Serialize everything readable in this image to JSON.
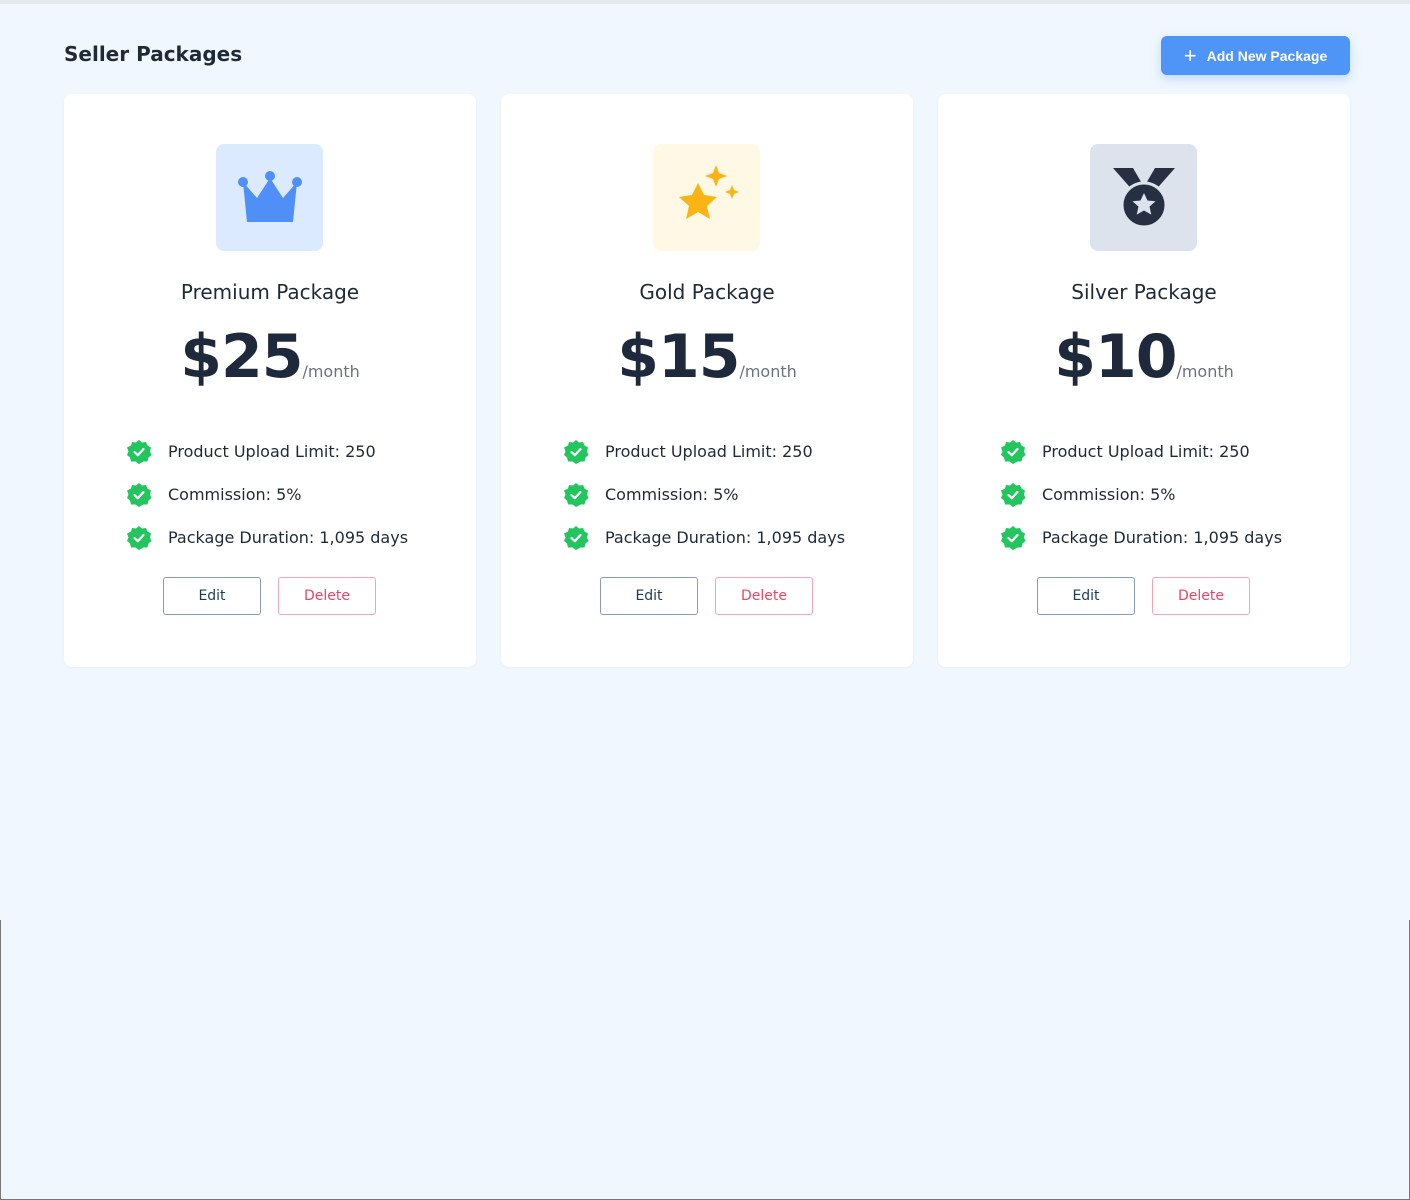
{
  "header": {
    "title": "Seller Packages",
    "add_button": "Add New Package"
  },
  "colors": {
    "accent": "#4f94f7",
    "check": "#22c55e",
    "delete": "#ef4463"
  },
  "packages": [
    {
      "icon": "crown-icon",
      "name": "Premium Package",
      "price": "$25",
      "period": "/month",
      "features": [
        "Product Upload Limit: 250",
        "Commission: 5%",
        "Package Duration: 1,095 days"
      ],
      "edit": "Edit",
      "delete": "Delete"
    },
    {
      "icon": "sparkle-star-icon",
      "name": "Gold Package",
      "price": "$15",
      "period": "/month",
      "features": [
        "Product Upload Limit: 250",
        "Commission: 5%",
        "Package Duration: 1,095 days"
      ],
      "edit": "Edit",
      "delete": "Delete"
    },
    {
      "icon": "medal-icon",
      "name": "Silver Package",
      "price": "$10",
      "period": "/month",
      "features": [
        "Product Upload Limit: 250",
        "Commission: 5%",
        "Package Duration: 1,095 days"
      ],
      "edit": "Edit",
      "delete": "Delete"
    }
  ]
}
